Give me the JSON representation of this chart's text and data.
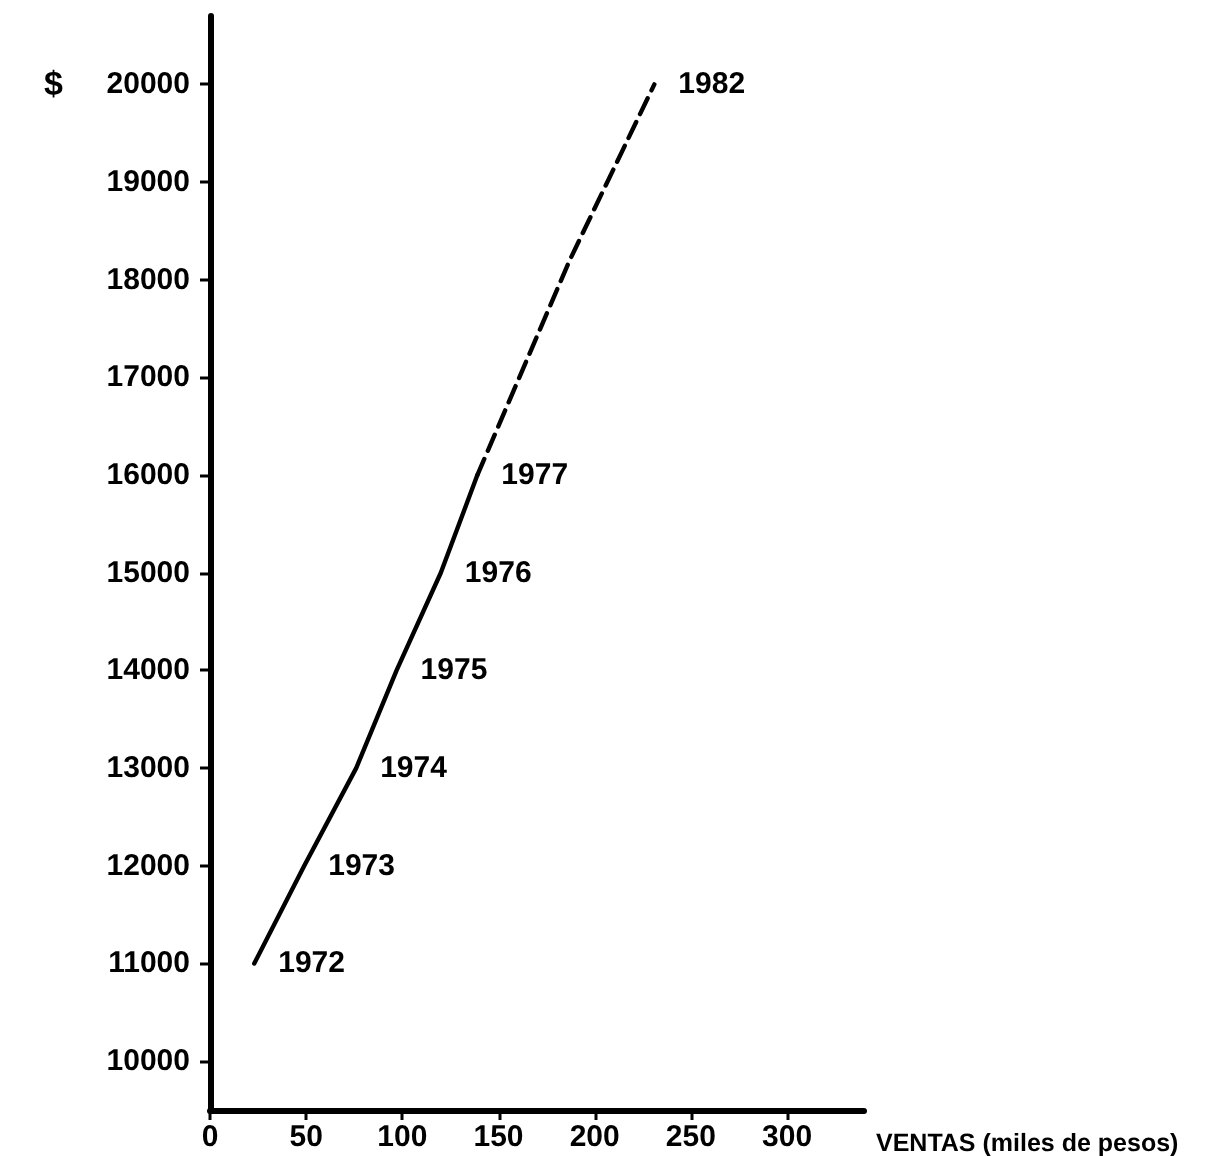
{
  "chart_data": {
    "type": "line",
    "xlabel": "VENTAS (miles de pesos)",
    "ylabel": "$",
    "xlim": [
      0,
      340
    ],
    "xticks": [
      0,
      50,
      100,
      150,
      200,
      250,
      300
    ],
    "ylim": [
      9500,
      20700
    ],
    "yticks": [
      10000,
      11000,
      12000,
      13000,
      14000,
      15000,
      16000,
      17000,
      18000,
      19000,
      20000
    ],
    "series": [
      {
        "color": "#000000",
        "line_style": "solid",
        "x": [
          23,
          49,
          76,
          97,
          120,
          139
        ],
        "values": [
          11000,
          12000,
          13000,
          14000,
          15000,
          16000
        ]
      },
      {
        "color": "#000000",
        "line_style": "dashed",
        "x": [
          139,
          187,
          231
        ],
        "values": [
          16000,
          18200,
          20000
        ]
      }
    ],
    "annotations": [
      {
        "text": "1972",
        "x": 23,
        "y": 11000
      },
      {
        "text": "1973",
        "x": 49,
        "y": 12000
      },
      {
        "text": "1974",
        "x": 76,
        "y": 13000
      },
      {
        "text": "1975",
        "x": 97,
        "y": 14000
      },
      {
        "text": "1976",
        "x": 120,
        "y": 15000
      },
      {
        "text": "1977",
        "x": 139,
        "y": 16000
      },
      {
        "text": "1982",
        "x": 231,
        "y": 20000
      }
    ],
    "grid": false,
    "marker": "none"
  }
}
